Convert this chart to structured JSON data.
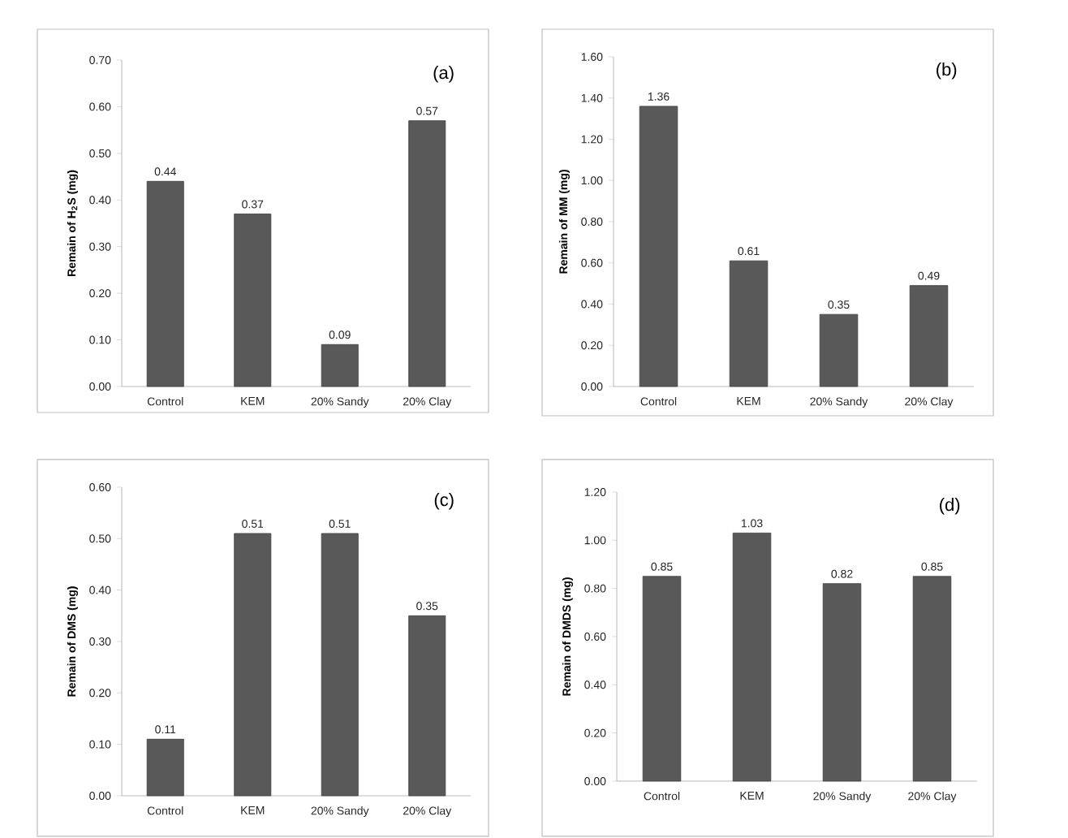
{
  "chart_data": [
    {
      "type": "bar",
      "ylabel": "Remain of H$_{2}$S (mg)",
      "categories": [
        "Control",
        "KEM",
        "20% Sandy",
        "20% Clay"
      ],
      "values": [
        0.44,
        0.37,
        0.09,
        0.57
      ],
      "color": "#595959",
      "data_labels": true,
      "ylim": [
        0,
        0.7
      ],
      "yticks": [
        {
          "value": 0,
          "label": "0.00"
        },
        {
          "value": 0.1,
          "label": "0.10"
        },
        {
          "value": 0.2,
          "label": "0.20"
        },
        {
          "value": 0.3,
          "label": "0.30"
        },
        {
          "value": 0.4,
          "label": "0.40"
        },
        {
          "value": 0.5,
          "label": "0.50"
        },
        {
          "value": 0.6,
          "label": "0.60"
        },
        {
          "value": 0.7,
          "label": "0.70"
        }
      ],
      "annotations": [
        "(a)"
      ]
    },
    {
      "type": "bar",
      "ylabel": "Remain of MM (mg)",
      "categories": [
        "Control",
        "KEM",
        "20% Sandy",
        "20% Clay"
      ],
      "values": [
        1.36,
        0.61,
        0.35,
        0.49
      ],
      "color": "#595959",
      "data_labels": true,
      "ylim": [
        0,
        1.6
      ],
      "yticks": [
        {
          "value": 0,
          "label": "0.00"
        },
        {
          "value": 0.2,
          "label": "0.20"
        },
        {
          "value": 0.4,
          "label": "0.40"
        },
        {
          "value": 0.6,
          "label": "0.60"
        },
        {
          "value": 0.8,
          "label": "0.80"
        },
        {
          "value": 1.0,
          "label": "1.00"
        },
        {
          "value": 1.2,
          "label": "1.20"
        },
        {
          "value": 1.4,
          "label": "1.40"
        },
        {
          "value": 1.6,
          "label": "1.60"
        }
      ],
      "annotations": [
        "(b)"
      ]
    },
    {
      "type": "bar",
      "ylabel": "Remain of DMS (mg)",
      "categories": [
        "Control",
        "KEM",
        "20% Sandy",
        "20% Clay"
      ],
      "values": [
        0.11,
        0.51,
        0.51,
        0.35
      ],
      "color": "#595959",
      "data_labels": true,
      "ylim": [
        0,
        0.6
      ],
      "yticks": [
        {
          "value": 0,
          "label": "0.00"
        },
        {
          "value": 0.1,
          "label": "0.10"
        },
        {
          "value": 0.2,
          "label": "0.20"
        },
        {
          "value": 0.3,
          "label": "0.30"
        },
        {
          "value": 0.4,
          "label": "0.40"
        },
        {
          "value": 0.5,
          "label": "0.50"
        },
        {
          "value": 0.6,
          "label": "0.60"
        }
      ],
      "annotations": [
        "(c)"
      ]
    },
    {
      "type": "bar",
      "ylabel": "Remain of DMDS (mg)",
      "categories": [
        "Control",
        "KEM",
        "20% Sandy",
        "20% Clay"
      ],
      "values": [
        0.85,
        1.03,
        0.82,
        0.85
      ],
      "color": "#595959",
      "data_labels": true,
      "ylim": [
        0,
        1.2
      ],
      "yticks": [
        {
          "value": 0,
          "label": "0.00"
        },
        {
          "value": 0.2,
          "label": "0.20"
        },
        {
          "value": 0.4,
          "label": "0.40"
        },
        {
          "value": 0.6,
          "label": "0.60"
        },
        {
          "value": 0.8,
          "label": "0.80"
        },
        {
          "value": 1.0,
          "label": "1.00"
        },
        {
          "value": 1.2,
          "label": "1.20"
        }
      ],
      "annotations": [
        "(d)"
      ]
    }
  ]
}
